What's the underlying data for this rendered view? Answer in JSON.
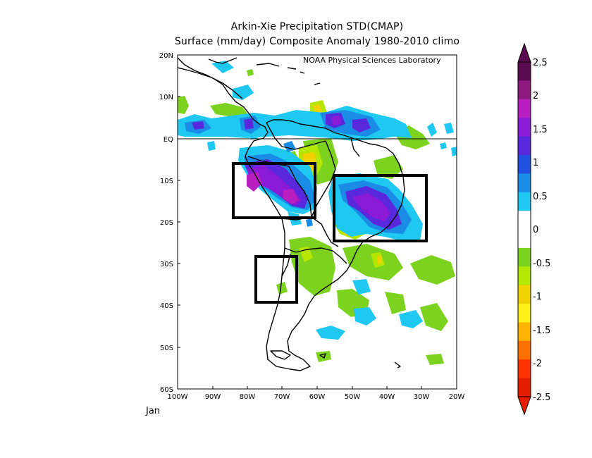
{
  "title_line1": "Arkin-Xie Precipitation STD(CMAP)",
  "title_line2": "Surface  (mm/day) Composite Anomaly 1980-2010 climo",
  "credit": "NOAA Physical Sciences Laboratory",
  "month": "Jan",
  "lat_ticks": [
    "20N",
    "10N",
    "EQ",
    "10S",
    "20S",
    "30S",
    "40S",
    "50S",
    "60S"
  ],
  "lon_ticks": [
    "100W",
    "90W",
    "80W",
    "70W",
    "60W",
    "50W",
    "40W",
    "30W",
    "20W"
  ],
  "colorbar": {
    "labels": [
      "2.5",
      "2",
      "1.5",
      "1",
      "0.5",
      "0",
      "-0.5",
      "-1",
      "-1.5",
      "-2",
      "-2.5"
    ],
    "colors": [
      "#5a0a4e",
      "#8c1a7e",
      "#b81ec0",
      "#8a1ad6",
      "#5a28dc",
      "#2050e0",
      "#1a8ce6",
      "#1ec8f0",
      "#ffffff",
      "#ffffff",
      "#7cd21e",
      "#b4e600",
      "#f0d200",
      "#fff01a",
      "#ffb400",
      "#ff6e00",
      "#ff3200",
      "#e61e00"
    ]
  },
  "colors": {
    "light_green": "#7cd21e",
    "yellow_green": "#b4e600",
    "yellow": "#f0d200",
    "light_blue": "#1ec8f0",
    "blue": "#1a8ce6",
    "indigo": "#5a28dc",
    "purple": "#8a1ad6",
    "magenta": "#b81ec0"
  },
  "boxes": [
    {
      "name": "peru-bolivia-box",
      "lon_west": -84,
      "lon_east": -60,
      "lat_north": -6,
      "lat_south": -19
    },
    {
      "name": "central-brazil-box",
      "lon_west": -55,
      "lon_east": -29,
      "lat_north": -9,
      "lat_south": -25
    },
    {
      "name": "central-chile-box",
      "lon_west": -78,
      "lon_east": -66,
      "lat_north": -28,
      "lat_south": -39
    }
  ]
}
